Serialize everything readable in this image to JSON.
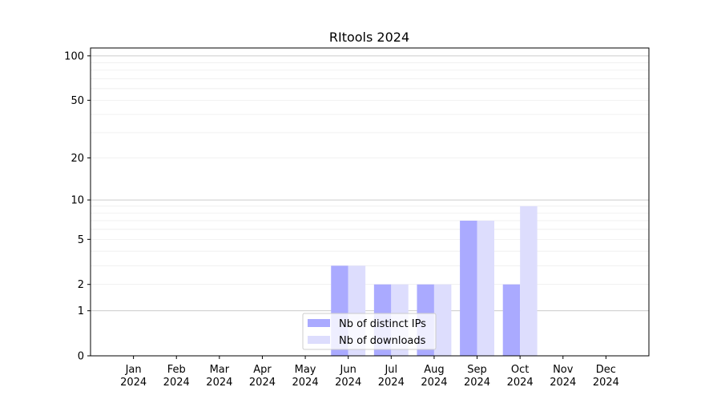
{
  "chart_data": {
    "type": "bar",
    "title": "RItools 2024",
    "xlabel": "",
    "ylabel": "",
    "yscale": "symlog (log10(1+y))",
    "ylim": [
      0,
      113
    ],
    "y_ticks": [
      0,
      1,
      2,
      5,
      10,
      20,
      50,
      100
    ],
    "y_tick_labels": [
      "0",
      "1",
      "2",
      "5",
      "10",
      "20",
      "50",
      "100"
    ],
    "grid": "horizontal, major at 1/10/100, minor between",
    "categories": [
      [
        "Jan",
        "2024"
      ],
      [
        "Feb",
        "2024"
      ],
      [
        "Mar",
        "2024"
      ],
      [
        "Apr",
        "2024"
      ],
      [
        "May",
        "2024"
      ],
      [
        "Jun",
        "2024"
      ],
      [
        "Jul",
        "2024"
      ],
      [
        "Aug",
        "2024"
      ],
      [
        "Sep",
        "2024"
      ],
      [
        "Oct",
        "2024"
      ],
      [
        "Nov",
        "2024"
      ],
      [
        "Dec",
        "2024"
      ]
    ],
    "series": [
      {
        "name": "Nb of distinct IPs",
        "color": "#aaaaff",
        "values": [
          0,
          0,
          0,
          0,
          0,
          3,
          2,
          2,
          7,
          2,
          0,
          0
        ]
      },
      {
        "name": "Nb of downloads",
        "color": "#ddddfd",
        "values": [
          0,
          0,
          0,
          0,
          0,
          3,
          2,
          2,
          7,
          9,
          0,
          0
        ]
      }
    ],
    "legend": "bottom-center"
  }
}
